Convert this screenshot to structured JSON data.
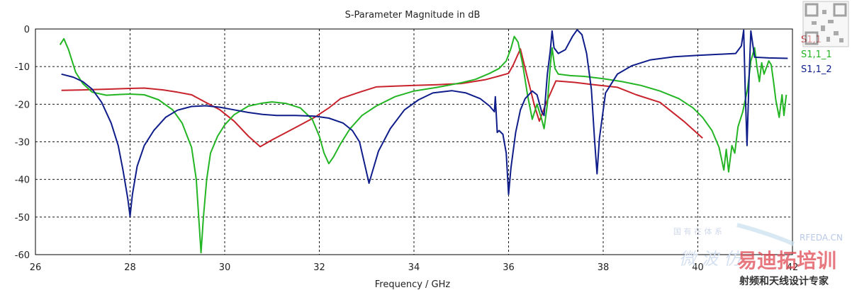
{
  "chart_data": {
    "type": "line",
    "title": "S-Parameter Magnitude in dB",
    "xlabel": "Frequency / GHz",
    "ylabel": "",
    "xlim": [
      26,
      42
    ],
    "ylim": [
      -60,
      0
    ],
    "xticks": [
      "26",
      "28",
      "30",
      "32",
      "34",
      "36",
      "38",
      "40",
      "42"
    ],
    "yticks": [
      "0",
      "-10",
      "-20",
      "-30",
      "-40",
      "-50",
      "-60"
    ],
    "grid": true,
    "legend_position": "right",
    "series": [
      {
        "name": "S1,1",
        "color": "#c8232c",
        "points": [
          [
            26.55,
            -16.3
          ],
          [
            27.0,
            -16.2
          ],
          [
            27.5,
            -16.0
          ],
          [
            28.0,
            -15.8
          ],
          [
            28.3,
            -15.7
          ],
          [
            28.7,
            -16.2
          ],
          [
            29.0,
            -16.8
          ],
          [
            29.3,
            -17.5
          ],
          [
            29.6,
            -19.5
          ],
          [
            29.9,
            -21.5
          ],
          [
            30.2,
            -24.5
          ],
          [
            30.5,
            -28.5
          ],
          [
            30.75,
            -31.3
          ],
          [
            31.0,
            -29.5
          ],
          [
            31.3,
            -27.5
          ],
          [
            31.6,
            -25.5
          ],
          [
            31.9,
            -23.5
          ],
          [
            32.2,
            -21.0
          ],
          [
            32.45,
            -18.5
          ],
          [
            32.8,
            -17.0
          ],
          [
            33.2,
            -15.4
          ],
          [
            33.6,
            -15.2
          ],
          [
            34.0,
            -15.0
          ],
          [
            34.5,
            -14.8
          ],
          [
            35.0,
            -14.5
          ],
          [
            35.5,
            -13.5
          ],
          [
            35.8,
            -12.5
          ],
          [
            36.0,
            -11.8
          ],
          [
            36.1,
            -9.5
          ],
          [
            36.25,
            -5.3
          ],
          [
            36.4,
            -13.0
          ],
          [
            36.55,
            -20.5
          ],
          [
            36.65,
            -24.5
          ],
          [
            36.8,
            -19.5
          ],
          [
            37.0,
            -13.8
          ],
          [
            37.4,
            -14.2
          ],
          [
            37.8,
            -14.8
          ],
          [
            38.3,
            -15.5
          ],
          [
            38.7,
            -17.5
          ],
          [
            39.2,
            -19.5
          ],
          [
            39.7,
            -24.5
          ],
          [
            40.1,
            -29.0
          ]
        ]
      },
      {
        "name": "S1,1_1",
        "color": "#23b523",
        "points": [
          [
            26.52,
            -4.2
          ],
          [
            26.6,
            -2.6
          ],
          [
            26.7,
            -5.5
          ],
          [
            26.85,
            -11.5
          ],
          [
            27.0,
            -14.5
          ],
          [
            27.2,
            -16.8
          ],
          [
            27.5,
            -17.6
          ],
          [
            27.8,
            -17.4
          ],
          [
            28.0,
            -17.3
          ],
          [
            28.3,
            -17.5
          ],
          [
            28.6,
            -18.8
          ],
          [
            28.9,
            -21.5
          ],
          [
            29.1,
            -25.0
          ],
          [
            29.3,
            -31.5
          ],
          [
            29.4,
            -40.0
          ],
          [
            29.5,
            -59.5
          ],
          [
            29.55,
            -50.0
          ],
          [
            29.62,
            -40.0
          ],
          [
            29.7,
            -33.0
          ],
          [
            29.85,
            -28.5
          ],
          [
            30.0,
            -25.5
          ],
          [
            30.2,
            -22.8
          ],
          [
            30.5,
            -20.5
          ],
          [
            30.8,
            -19.7
          ],
          [
            31.0,
            -19.4
          ],
          [
            31.3,
            -19.8
          ],
          [
            31.6,
            -21.0
          ],
          [
            31.85,
            -24.0
          ],
          [
            32.0,
            -28.5
          ],
          [
            32.1,
            -33.0
          ],
          [
            32.2,
            -35.8
          ],
          [
            32.3,
            -34.0
          ],
          [
            32.45,
            -30.5
          ],
          [
            32.65,
            -26.5
          ],
          [
            32.9,
            -23.0
          ],
          [
            33.2,
            -20.5
          ],
          [
            33.6,
            -18.0
          ],
          [
            34.0,
            -16.5
          ],
          [
            34.5,
            -15.5
          ],
          [
            35.0,
            -14.3
          ],
          [
            35.3,
            -13.4
          ],
          [
            35.6,
            -11.8
          ],
          [
            35.8,
            -10.5
          ],
          [
            35.95,
            -8.5
          ],
          [
            36.05,
            -5.2
          ],
          [
            36.12,
            -2.0
          ],
          [
            36.2,
            -3.5
          ],
          [
            36.3,
            -9.5
          ],
          [
            36.4,
            -17.5
          ],
          [
            36.5,
            -24.0
          ],
          [
            36.6,
            -20.0
          ],
          [
            36.7,
            -24.0
          ],
          [
            36.75,
            -26.5
          ],
          [
            36.82,
            -20.0
          ],
          [
            36.88,
            -10.0
          ],
          [
            36.92,
            -5.0
          ],
          [
            36.98,
            -10.5
          ],
          [
            37.05,
            -12.0
          ],
          [
            37.3,
            -12.4
          ],
          [
            37.6,
            -12.6
          ],
          [
            38.0,
            -13.2
          ],
          [
            38.4,
            -14.0
          ],
          [
            38.8,
            -15.0
          ],
          [
            39.2,
            -16.5
          ],
          [
            39.6,
            -18.5
          ],
          [
            39.9,
            -21.0
          ],
          [
            40.1,
            -23.5
          ],
          [
            40.3,
            -27.0
          ],
          [
            40.45,
            -31.5
          ],
          [
            40.55,
            -37.5
          ],
          [
            40.6,
            -32.0
          ],
          [
            40.65,
            -38.0
          ],
          [
            40.72,
            -31.0
          ],
          [
            40.78,
            -33.0
          ],
          [
            40.85,
            -26.0
          ],
          [
            40.95,
            -22.0
          ],
          [
            41.05,
            -16.0
          ],
          [
            41.12,
            -8.5
          ],
          [
            41.2,
            -5.0
          ],
          [
            41.25,
            -10.0
          ],
          [
            41.3,
            -14.0
          ],
          [
            41.35,
            -9.0
          ],
          [
            41.4,
            -12.0
          ],
          [
            41.5,
            -8.5
          ],
          [
            41.55,
            -9.5
          ],
          [
            41.6,
            -14.0
          ],
          [
            41.65,
            -19.0
          ],
          [
            41.72,
            -23.5
          ],
          [
            41.78,
            -17.5
          ],
          [
            41.82,
            -23.0
          ],
          [
            41.87,
            -17.5
          ]
        ]
      },
      {
        "name": "S1,1_2",
        "color": "#0f1d8a",
        "points": [
          [
            26.55,
            -12.0
          ],
          [
            26.8,
            -12.8
          ],
          [
            27.0,
            -14.0
          ],
          [
            27.2,
            -16.0
          ],
          [
            27.4,
            -19.5
          ],
          [
            27.6,
            -25.0
          ],
          [
            27.75,
            -31.0
          ],
          [
            27.85,
            -37.5
          ],
          [
            27.95,
            -45.0
          ],
          [
            28.0,
            -49.8
          ],
          [
            28.05,
            -44.0
          ],
          [
            28.15,
            -36.5
          ],
          [
            28.3,
            -31.0
          ],
          [
            28.5,
            -27.0
          ],
          [
            28.75,
            -23.5
          ],
          [
            29.0,
            -21.6
          ],
          [
            29.3,
            -20.6
          ],
          [
            29.6,
            -20.4
          ],
          [
            29.9,
            -20.8
          ],
          [
            30.2,
            -21.5
          ],
          [
            30.5,
            -22.2
          ],
          [
            30.8,
            -22.7
          ],
          [
            31.1,
            -23.0
          ],
          [
            31.5,
            -23.0
          ],
          [
            31.9,
            -23.2
          ],
          [
            32.2,
            -23.7
          ],
          [
            32.5,
            -25.0
          ],
          [
            32.7,
            -27.0
          ],
          [
            32.85,
            -30.0
          ],
          [
            32.95,
            -35.5
          ],
          [
            33.05,
            -41.0
          ],
          [
            33.12,
            -38.0
          ],
          [
            33.25,
            -32.5
          ],
          [
            33.5,
            -26.5
          ],
          [
            33.8,
            -21.5
          ],
          [
            34.1,
            -18.8
          ],
          [
            34.4,
            -17.0
          ],
          [
            34.8,
            -16.4
          ],
          [
            35.1,
            -17.0
          ],
          [
            35.4,
            -18.5
          ],
          [
            35.6,
            -20.5
          ],
          [
            35.7,
            -22.0
          ],
          [
            35.72,
            -18.0
          ],
          [
            35.76,
            -27.5
          ],
          [
            35.8,
            -27.0
          ],
          [
            35.88,
            -28.0
          ],
          [
            35.95,
            -33.0
          ],
          [
            36.0,
            -44.0
          ],
          [
            36.05,
            -37.0
          ],
          [
            36.15,
            -27.5
          ],
          [
            36.25,
            -21.5
          ],
          [
            36.35,
            -18.5
          ],
          [
            36.5,
            -16.5
          ],
          [
            36.6,
            -17.5
          ],
          [
            36.7,
            -22.0
          ],
          [
            36.75,
            -23.0
          ],
          [
            36.82,
            -12.0
          ],
          [
            36.88,
            -6.0
          ],
          [
            36.92,
            -0.5
          ],
          [
            36.96,
            -5.0
          ],
          [
            37.05,
            -6.5
          ],
          [
            37.2,
            -5.5
          ],
          [
            37.35,
            -2.0
          ],
          [
            37.45,
            -0.2
          ],
          [
            37.55,
            -1.5
          ],
          [
            37.65,
            -6.5
          ],
          [
            37.75,
            -16.0
          ],
          [
            37.82,
            -30.0
          ],
          [
            37.87,
            -38.5
          ],
          [
            37.92,
            -29.0
          ],
          [
            38.05,
            -17.0
          ],
          [
            38.3,
            -12.0
          ],
          [
            38.6,
            -9.8
          ],
          [
            39.0,
            -8.2
          ],
          [
            39.5,
            -7.4
          ],
          [
            40.0,
            -7.0
          ],
          [
            40.5,
            -6.7
          ],
          [
            40.8,
            -6.5
          ],
          [
            40.92,
            -4.5
          ],
          [
            40.97,
            -0.3
          ],
          [
            41.0,
            -16.0
          ],
          [
            41.04,
            -31.0
          ],
          [
            41.08,
            -14.0
          ],
          [
            41.12,
            -0.5
          ],
          [
            41.2,
            -7.5
          ],
          [
            41.5,
            -7.7
          ],
          [
            41.9,
            -7.8
          ]
        ]
      }
    ]
  },
  "watermarks": {
    "site": "RFEDA.CN",
    "overlay_brand": "易迪拓培训",
    "overlay_tagline": "射频和天线设计专家",
    "overlay_script": "微 波 仿",
    "overlay_faint": "国 有 在 体 系"
  }
}
